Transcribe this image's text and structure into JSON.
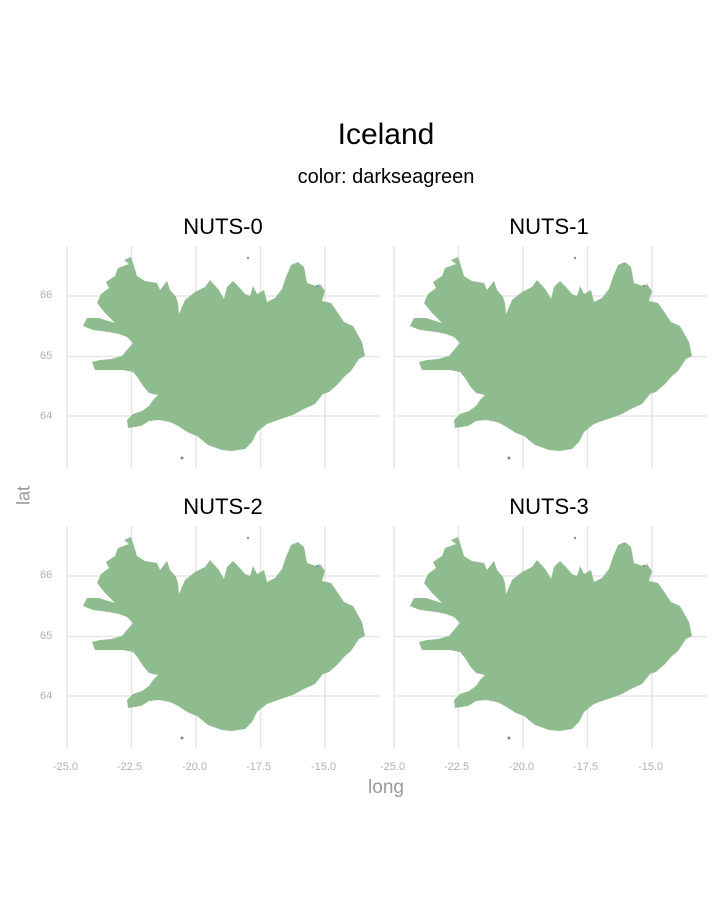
{
  "title": "Iceland",
  "subtitle": "color: darkseagreen",
  "fill_color": "#8fbc8f",
  "axis": {
    "xlabel": "long",
    "ylabel": "lat",
    "x_ticks": [
      "-25.0",
      "-22.5",
      "-20.0",
      "-17.5",
      "-15.0"
    ],
    "y_ticks": [
      "66",
      "65",
      "64"
    ]
  },
  "panels": [
    {
      "label": "NUTS-0"
    },
    {
      "label": "NUTS-1"
    },
    {
      "label": "NUTS-2"
    },
    {
      "label": "NUTS-3"
    }
  ]
}
